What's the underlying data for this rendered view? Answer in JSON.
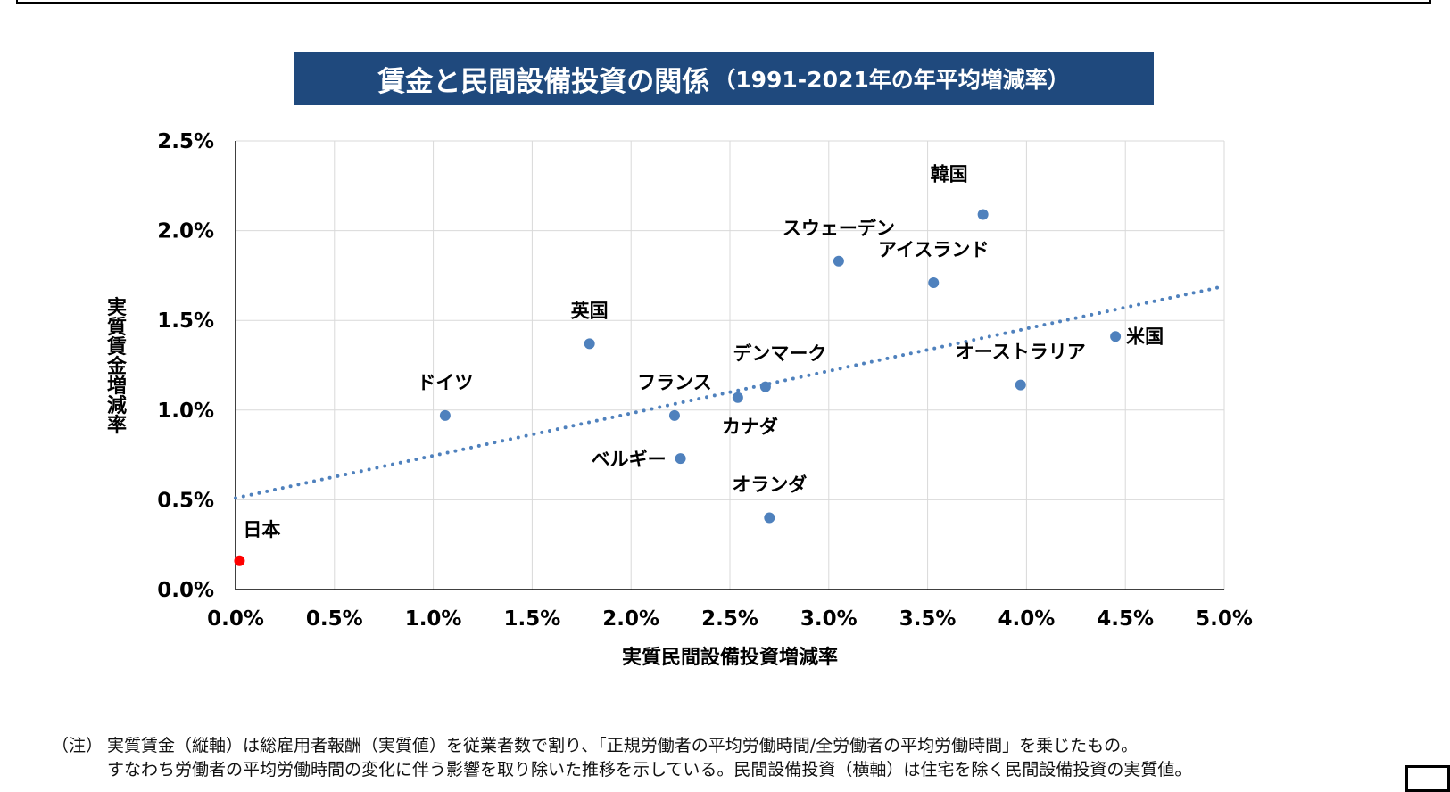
{
  "title": {
    "main": "賃金と民間設備投資の関係",
    "sub": "（1991-2021年の年平均増減率）"
  },
  "colors": {
    "title_bg": "#1F497D",
    "point": "#4F81BD",
    "highlight_point": "#FF0000",
    "trendline": "#4F81BD",
    "grid": "#D9D9D9"
  },
  "chart_data": {
    "type": "scatter",
    "xlabel": "実質民間設備投資増減率",
    "ylabel": "実質賃金増減率",
    "xlim": [
      0,
      5.0
    ],
    "ylim": [
      0,
      2.5
    ],
    "x_ticks": [
      "0.0%",
      "0.5%",
      "1.0%",
      "1.5%",
      "2.0%",
      "2.5%",
      "3.0%",
      "3.5%",
      "4.0%",
      "4.5%",
      "5.0%"
    ],
    "y_ticks": [
      "0.0%",
      "0.5%",
      "1.0%",
      "1.5%",
      "2.0%",
      "2.5%"
    ],
    "grid": true,
    "points": [
      {
        "label": "日本",
        "x": 0.02,
        "y": 0.16,
        "highlight": true
      },
      {
        "label": "ドイツ",
        "x": 1.06,
        "y": 0.97
      },
      {
        "label": "英国",
        "x": 1.79,
        "y": 1.37
      },
      {
        "label": "フランス",
        "x": 2.22,
        "y": 0.97
      },
      {
        "label": "ベルギー",
        "x": 2.25,
        "y": 0.73
      },
      {
        "label": "カナダ",
        "x": 2.54,
        "y": 1.07
      },
      {
        "label": "デンマーク",
        "x": 2.68,
        "y": 1.13
      },
      {
        "label": "オランダ",
        "x": 2.7,
        "y": 0.4
      },
      {
        "label": "スウェーデン",
        "x": 3.05,
        "y": 1.83
      },
      {
        "label": "アイスランド",
        "x": 3.53,
        "y": 1.71
      },
      {
        "label": "韓国",
        "x": 3.78,
        "y": 2.09
      },
      {
        "label": "オーストラリア",
        "x": 3.97,
        "y": 1.14
      },
      {
        "label": "米国",
        "x": 4.45,
        "y": 1.41
      }
    ],
    "trendline": {
      "type": "linear",
      "dotted": true,
      "intercept": 0.51,
      "slope": 0.236
    }
  },
  "notes": {
    "marker": "（注）",
    "line1": "実質賃金（縦軸）は総雇用者報酬（実質値）を従業者数で割り、「正規労働者の平均労働時間/全労働者の平均労働時間」を乗じたもの。",
    "line2": "すなわち労働者の平均労働時間の変化に伴う影響を取り除いた推移を示している。民間設備投資（横軸）は住宅を除く民間設備投資の実質値。"
  }
}
